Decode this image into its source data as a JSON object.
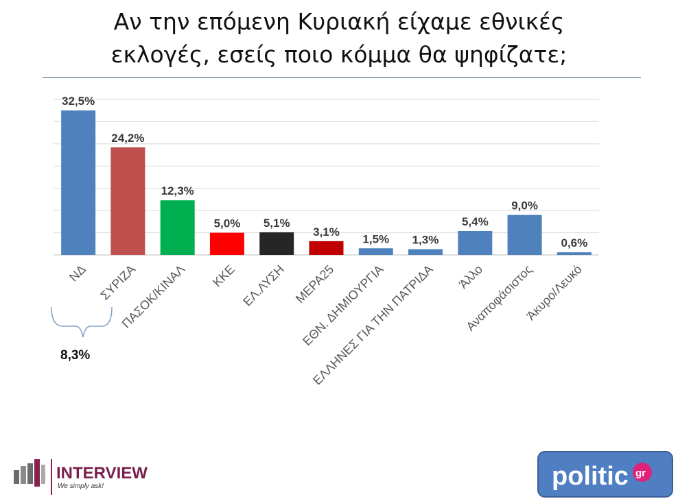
{
  "title_line1": "Αν την επόμενη Κυριακή είχαμε εθνικές",
  "title_line2": "εκλογές, εσείς ποιο κόμμα θα ψηφίζατε;",
  "chart_data": {
    "type": "bar",
    "categories": [
      "ΝΔ",
      "ΣΥΡΙΖΑ",
      "ΠΑΣΟΚ/ΚΙΝΑΛ",
      "ΚΚΕ",
      "ΕΛ.ΛΥΣΗ",
      "ΜΕΡΑ25",
      "ΕΘΝ. ΔΗΜΙΟΥΡΓΙΑ",
      "ΕΛΛΗΝΕΣ ΓΙΑ ΤΗΝ ΠΑΤΡΙΔΑ",
      "Άλλο",
      "Αναποφάσιστος",
      "Άκυρο/Λευκό"
    ],
    "values": [
      32.5,
      24.2,
      12.3,
      5.0,
      5.1,
      3.1,
      1.5,
      1.3,
      5.4,
      9.0,
      0.6
    ],
    "value_labels": [
      "32,5%",
      "24,2%",
      "12,3%",
      "5,0%",
      "5,1%",
      "3,1%",
      "1,5%",
      "1,3%",
      "5,4%",
      "9,0%",
      "0,6%"
    ],
    "colors": [
      "#4f81bd",
      "#c0504d",
      "#00b050",
      "#ff0000",
      "#262626",
      "#c00000",
      "#4f81bd",
      "#4f81bd",
      "#4f81bd",
      "#4f81bd",
      "#4f81bd"
    ],
    "ylim": [
      0,
      35
    ],
    "gridlines": true,
    "annotation": "8,3%"
  },
  "logos": {
    "interview_name": "INTERVIEW",
    "interview_tagline": "We simply ask!",
    "politic_name": "politic",
    "politic_suffix": "gr"
  }
}
